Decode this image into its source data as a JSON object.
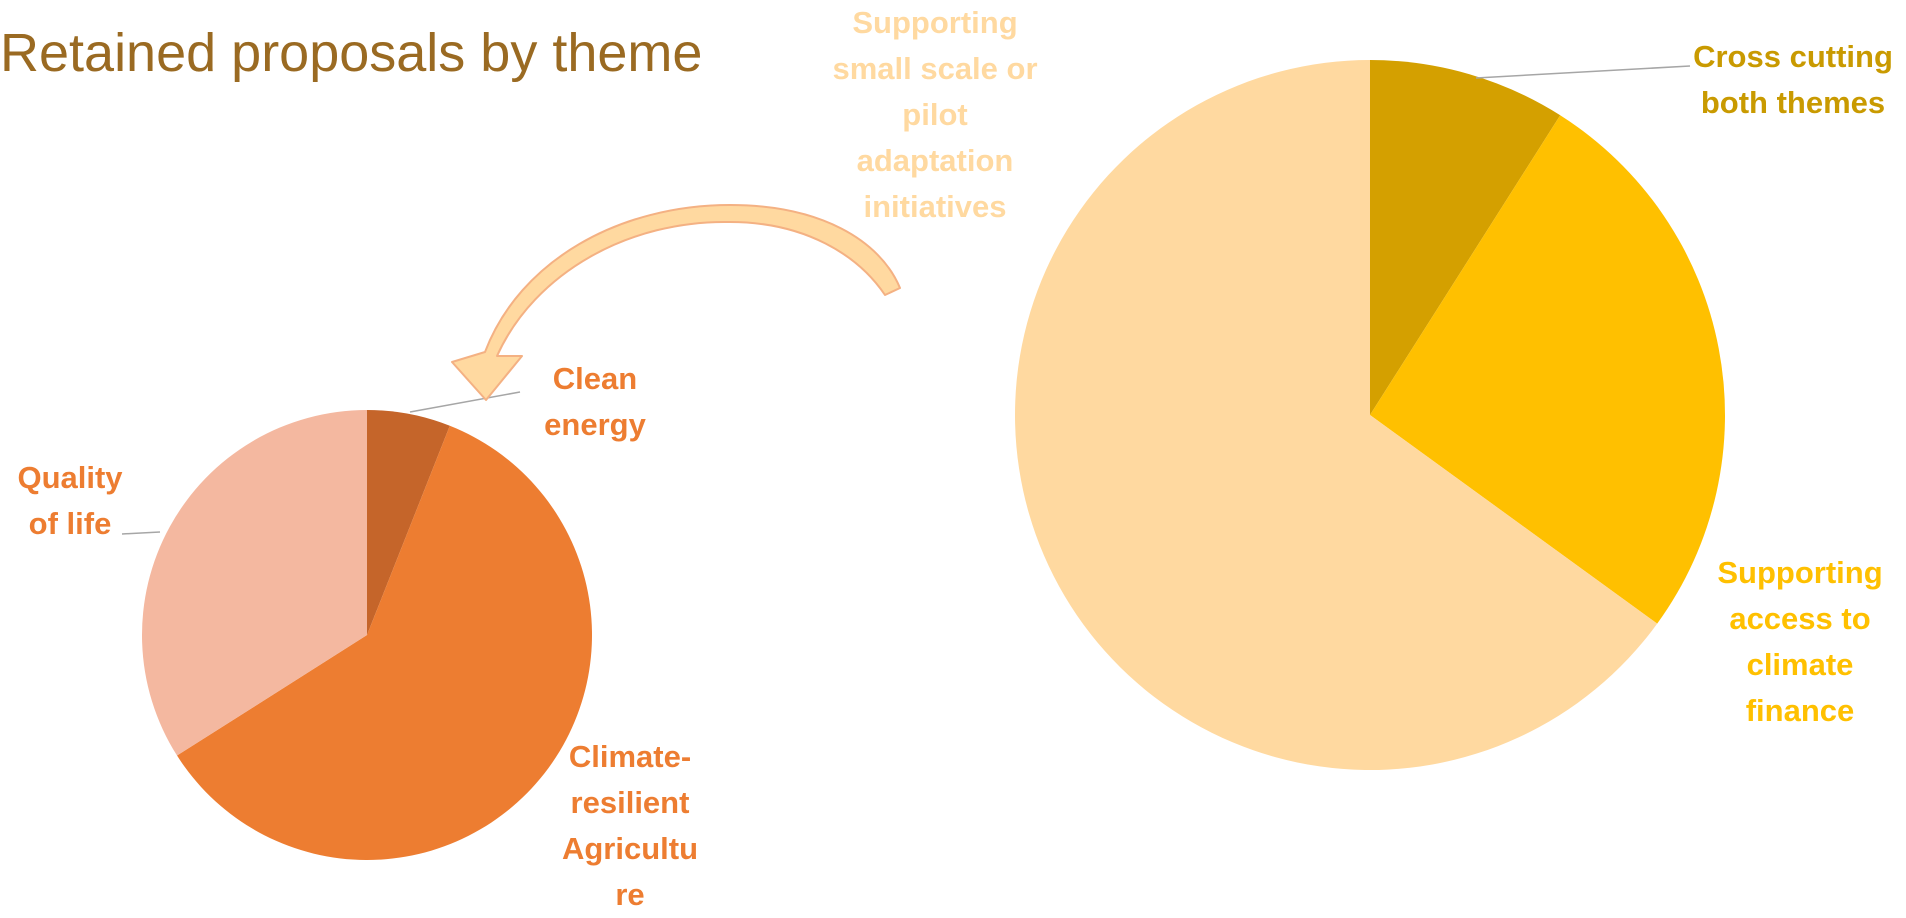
{
  "chart_data": [
    {
      "type": "pie",
      "title": "Retained proposals by theme",
      "slices": [
        {
          "label_lines": [
            "Clean",
            "energy"
          ],
          "value": 6,
          "color": "#C5652A"
        },
        {
          "label_lines": [
            "Climate-",
            "resilient",
            "Agricultu",
            "re"
          ],
          "value": 60,
          "color": "#ED7D31"
        },
        {
          "label_lines": [
            "Quality",
            "of life"
          ],
          "value": 34,
          "color": "#F4B8A0"
        }
      ]
    },
    {
      "type": "pie",
      "title": "",
      "slices": [
        {
          "label_lines": [
            "Cross cutting",
            "both themes"
          ],
          "value": 9,
          "color": "#D4A000"
        },
        {
          "label_lines": [
            "Supporting",
            "access to",
            "climate",
            "finance"
          ],
          "value": 26,
          "color": "#FFC000"
        },
        {
          "label_lines": [
            "Supporting",
            "small scale or",
            "pilot",
            "adaptation",
            "initiatives"
          ],
          "value": 65,
          "color": "#FFD9A0"
        }
      ]
    }
  ],
  "label_colors": {
    "left": "#ED7D31",
    "right_dark": "#C99A00",
    "right_mid": "#FFC000",
    "right_light": "#FFD9A0",
    "arrow": "#FFD9A0",
    "arrow_outline": "#F4B183"
  }
}
